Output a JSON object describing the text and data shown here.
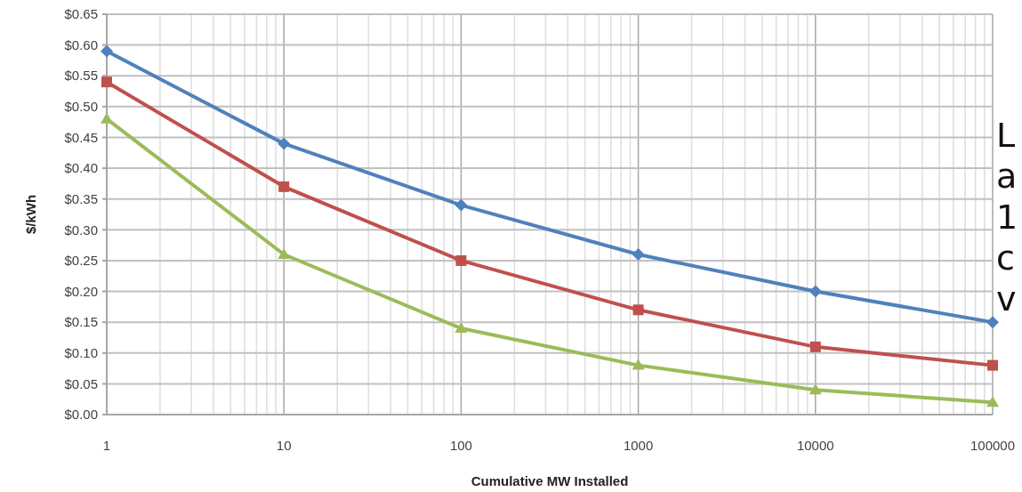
{
  "chart_data": {
    "type": "line",
    "xlabel": "Cumulative MW Installed",
    "ylabel": "$/kWh",
    "log": "x",
    "grid": true,
    "line_style": "solid",
    "x": [
      1,
      10,
      100,
      1000,
      10000,
      100000
    ],
    "xlim": [
      1,
      100000
    ],
    "xticks": [
      1,
      10,
      100,
      1000,
      10000,
      100000
    ],
    "ylim": [
      0,
      0.65
    ],
    "yticks": [
      {
        "value": 0,
        "label": "$0.00"
      },
      {
        "value": 0.05,
        "label": "$0.05"
      },
      {
        "value": 0.1,
        "label": "$0.10"
      },
      {
        "value": 0.15,
        "label": "$0.15"
      },
      {
        "value": 0.2,
        "label": "$0.20"
      },
      {
        "value": 0.25,
        "label": "$0.25"
      },
      {
        "value": 0.3,
        "label": "$0.30"
      },
      {
        "value": 0.35,
        "label": "$0.35"
      },
      {
        "value": 0.4,
        "label": "$0.40"
      },
      {
        "value": 0.45,
        "label": "$0.45"
      },
      {
        "value": 0.5,
        "label": "$0.50"
      },
      {
        "value": 0.55,
        "label": "$0.55"
      },
      {
        "value": 0.6,
        "label": "$0.60"
      },
      {
        "value": 0.65,
        "label": "$0.65"
      }
    ],
    "series": [
      {
        "color": "#4f81bd",
        "marker": "diamond",
        "values": [
          0.59,
          0.44,
          0.34,
          0.26,
          0.2,
          0.15
        ]
      },
      {
        "color": "#c0504d",
        "marker": "square",
        "values": [
          0.54,
          0.37,
          0.25,
          0.17,
          0.11,
          0.08
        ]
      },
      {
        "color": "#9bbb59",
        "marker": "triangle",
        "values": [
          0.48,
          0.26,
          0.14,
          0.08,
          0.04,
          0.02
        ]
      }
    ],
    "annotations": [
      "L",
      "a",
      "1",
      "c",
      "v"
    ]
  }
}
